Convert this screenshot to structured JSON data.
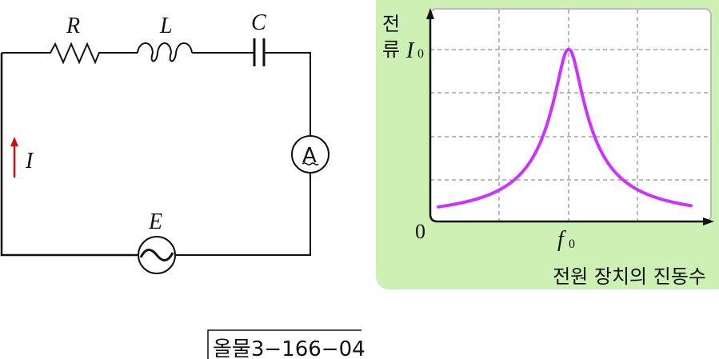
{
  "circuit": {
    "resistor_label": "R",
    "inductor_label": "L",
    "capacitor_label": "C",
    "current_label": "I",
    "source_label": "E",
    "ammeter_label": "A",
    "current_arrow_color": "#d01010"
  },
  "graph": {
    "background_color": "#cdf0b4",
    "curve_color": "#cc33ff",
    "y_axis_label_line1": "전",
    "y_axis_label_line2": "류",
    "y_peak_label": "I",
    "y_peak_subscript": "0",
    "origin_label": "0",
    "x_peak_label": "f",
    "x_peak_subscript": "0",
    "x_axis_label": "전원 장치의 진동수"
  },
  "chart_data": {
    "type": "line",
    "description_of_shape": "resonance peak",
    "xlabel": "전원 장치의 진동수",
    "ylabel": "전류",
    "x_tick_labels": [
      "0",
      "f0"
    ],
    "y_tick_labels": [
      "I0"
    ],
    "grid": true,
    "peak": {
      "x": "f0",
      "y": "I0"
    }
  },
  "footer": {
    "code": "올물3−166−04"
  }
}
